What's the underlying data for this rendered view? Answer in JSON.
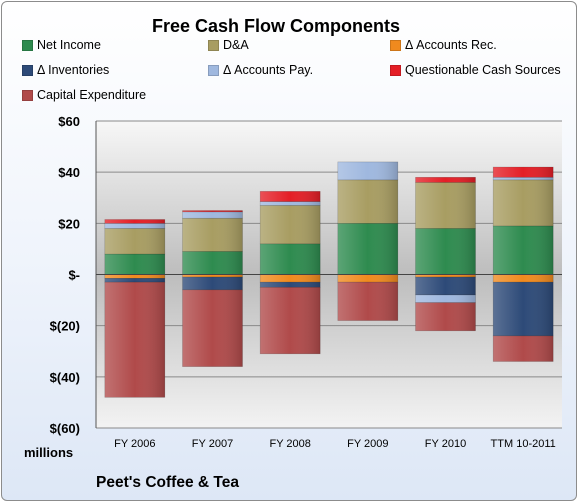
{
  "chart_data": {
    "type": "bar",
    "stacked": true,
    "title": "Free Cash Flow Components",
    "categories": [
      "FY 2006",
      "FY 2007",
      "FY 2008",
      "FY 2009",
      "FY 2010",
      "TTM 10-2011"
    ],
    "ylim": [
      -60,
      60
    ],
    "yticks": [
      60,
      40,
      20,
      0,
      -20,
      -40,
      -60
    ],
    "ytick_labels": [
      "$60",
      "$40",
      "$20",
      "$-",
      "$(20)",
      "$(40)",
      "$(60)"
    ],
    "units_label": "millions",
    "grid": true,
    "legend_position": "top",
    "series": [
      {
        "name": "Net Income",
        "color": "#2e8b4f",
        "values": [
          8,
          9,
          12,
          20,
          18,
          19
        ]
      },
      {
        "name": "D&A",
        "color": "#a89d62",
        "values": [
          10,
          13,
          15,
          17,
          18,
          18
        ]
      },
      {
        "name": "Δ Accounts Rec.",
        "color": "#f08a1e",
        "values": [
          -1.5,
          -1,
          -3,
          -3,
          -1,
          -3
        ]
      },
      {
        "name": "Δ Inventories",
        "color": "#2d4a78",
        "values": [
          -1.5,
          -5,
          -2,
          0,
          -7,
          -21
        ]
      },
      {
        "name": "Δ Accounts Pay.",
        "color": "#9fb8df",
        "values": [
          2,
          2.5,
          1.5,
          7,
          -3,
          1
        ]
      },
      {
        "name": "Questionable Cash Sources",
        "color": "#e41e26",
        "values": [
          1.5,
          0.5,
          4,
          0,
          2,
          4
        ]
      },
      {
        "name": "Capital Expenditure",
        "color": "#b04a4a",
        "values": [
          -45,
          -30,
          -26,
          -15,
          -11,
          -10
        ]
      }
    ]
  },
  "company": "Peet's Coffee & Tea"
}
